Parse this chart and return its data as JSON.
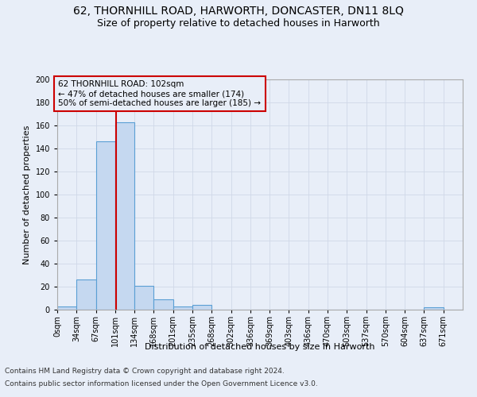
{
  "title": "62, THORNHILL ROAD, HARWORTH, DONCASTER, DN11 8LQ",
  "subtitle": "Size of property relative to detached houses in Harworth",
  "xlabel": "Distribution of detached houses by size in Harworth",
  "ylabel": "Number of detached properties",
  "bin_edges": [
    0,
    33.5,
    67,
    100.5,
    134,
    167.5,
    201,
    234.5,
    268,
    301.5,
    335,
    368.5,
    402,
    435.5,
    469,
    502.5,
    536,
    569.5,
    603,
    636.5,
    670,
    703.5
  ],
  "bin_labels": [
    "0sqm",
    "34sqm",
    "67sqm",
    "101sqm",
    "134sqm",
    "168sqm",
    "201sqm",
    "235sqm",
    "268sqm",
    "302sqm",
    "336sqm",
    "369sqm",
    "403sqm",
    "436sqm",
    "470sqm",
    "503sqm",
    "537sqm",
    "570sqm",
    "604sqm",
    "637sqm",
    "671sqm"
  ],
  "bar_heights": [
    3,
    26,
    146,
    163,
    21,
    9,
    3,
    4,
    0,
    0,
    0,
    0,
    0,
    0,
    0,
    0,
    0,
    0,
    0,
    2,
    0
  ],
  "bar_color": "#c5d8f0",
  "bar_edge_color": "#5a9fd4",
  "bar_linewidth": 0.8,
  "grid_color": "#d0d8e8",
  "background_color": "#e8eef8",
  "property_line_x": 102,
  "property_line_color": "#cc0000",
  "annotation_line1": "62 THORNHILL ROAD: 102sqm",
  "annotation_line2": "← 47% of detached houses are smaller (174)",
  "annotation_line3": "50% of semi-detached houses are larger (185) →",
  "annotation_box_color": "#cc0000",
  "ylim": [
    0,
    200
  ],
  "yticks": [
    0,
    20,
    40,
    60,
    80,
    100,
    120,
    140,
    160,
    180,
    200
  ],
  "footer_line1": "Contains HM Land Registry data © Crown copyright and database right 2024.",
  "footer_line2": "Contains public sector information licensed under the Open Government Licence v3.0.",
  "title_fontsize": 10,
  "subtitle_fontsize": 9,
  "axis_label_fontsize": 8,
  "tick_fontsize": 7,
  "annotation_fontsize": 7.5,
  "footer_fontsize": 6.5
}
